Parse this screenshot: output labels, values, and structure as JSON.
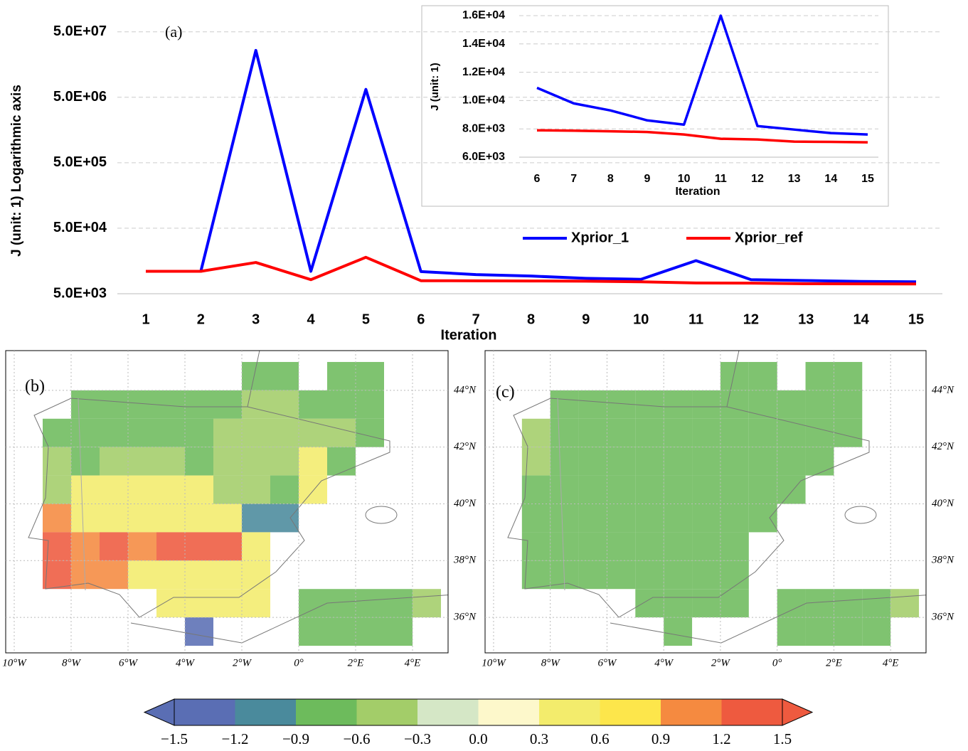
{
  "chart_data": [
    {
      "type": "line",
      "log_y": true,
      "annotation": "(a)",
      "y_label": "J (unit: 1) Logarithmic axis",
      "x_label": "Iteration",
      "categories": [
        "1",
        "2",
        "3",
        "4",
        "5",
        "6",
        "7",
        "8",
        "9",
        "10",
        "11",
        "12",
        "13",
        "14",
        "15"
      ],
      "series": [
        {
          "name": "Xprior_1",
          "color": "#0000ff",
          "values": [
            11000,
            11000,
            26000000,
            11000,
            6600000,
            10900,
            9800,
            9300,
            8600,
            8300,
            16000,
            8200,
            7950,
            7700,
            7600
          ]
        },
        {
          "name": "Xprior_ref",
          "color": "#ff0000",
          "values": [
            11000,
            11000,
            15000,
            8200,
            18000,
            7900,
            7870,
            7830,
            7780,
            7600,
            7300,
            7250,
            7100,
            7080,
            7050
          ]
        }
      ],
      "ylim": [
        5000,
        100000000
      ],
      "yticks": [
        {
          "value": 5000,
          "label": "5.0E+03"
        },
        {
          "value": 50000,
          "label": "5.0E+04"
        },
        {
          "value": 500000,
          "label": "5.0E+05"
        },
        {
          "value": 5000000,
          "label": "5.0E+06"
        },
        {
          "value": 50000000,
          "label": "5.0E+07"
        }
      ],
      "grid": true,
      "legend": "right"
    },
    {
      "type": "line",
      "log_y": false,
      "y_label": "J (unit: 1)",
      "x_label": "Iteration",
      "categories": [
        "6",
        "7",
        "8",
        "9",
        "10",
        "11",
        "12",
        "13",
        "14",
        "15"
      ],
      "series": [
        {
          "color": "#0000ff",
          "values": [
            10900,
            9800,
            9300,
            8600,
            8300,
            16000,
            8200,
            7950,
            7700,
            7600
          ]
        },
        {
          "color": "#ff0000",
          "values": [
            7900,
            7870,
            7830,
            7780,
            7600,
            7300,
            7250,
            7100,
            7080,
            7050
          ]
        }
      ],
      "ylim": [
        6000,
        16000
      ],
      "yticks": [
        {
          "value": 6000,
          "label": "6.0E+03"
        },
        {
          "value": 8000,
          "label": "8.0E+03"
        },
        {
          "value": 10000,
          "label": "1.0E+04"
        },
        {
          "value": 12000,
          "label": "1.2E+04"
        },
        {
          "value": 14000,
          "label": "1.4E+04"
        },
        {
          "value": 16000,
          "label": "1.6E+04"
        }
      ],
      "grid": true
    },
    {
      "type": "map",
      "annotation": "(b)",
      "xlim": [
        -10.3,
        5.25
      ],
      "ylim": [
        34.75,
        45.4
      ],
      "xticks": [
        {
          "value": -10,
          "label": "10°W"
        },
        {
          "value": -8,
          "label": "8°W"
        },
        {
          "value": -6,
          "label": "6°W"
        },
        {
          "value": -4,
          "label": "4°W"
        },
        {
          "value": -2,
          "label": "2°W"
        },
        {
          "value": 0,
          "label": "0°"
        },
        {
          "value": 2,
          "label": "2°E"
        },
        {
          "value": 4,
          "label": "4°E"
        }
      ],
      "yticks": [
        {
          "value": 36,
          "label": "36°N"
        },
        {
          "value": 38,
          "label": "38°N"
        },
        {
          "value": 40,
          "label": "40°N"
        },
        {
          "value": 42,
          "label": "42°N"
        },
        {
          "value": 44,
          "label": "44°N"
        }
      ],
      "xbins": [
        -10,
        -9,
        -8,
        -7,
        -6,
        -5,
        -4,
        -3,
        -2,
        -1,
        0,
        1,
        2,
        3,
        4,
        5
      ],
      "ybins": [
        45,
        44,
        43,
        42,
        41,
        40,
        39,
        38,
        37,
        36,
        35
      ],
      "z": [
        [
          null,
          null,
          null,
          null,
          null,
          null,
          null,
          null,
          -0.7,
          -0.7,
          null,
          -0.7,
          -0.7,
          null,
          null
        ],
        [
          null,
          null,
          -0.7,
          -0.7,
          -0.7,
          -0.7,
          -0.7,
          -0.7,
          -0.5,
          -0.5,
          -0.7,
          -0.7,
          -0.8,
          null,
          null
        ],
        [
          null,
          -0.7,
          -0.7,
          -0.7,
          -0.7,
          -0.7,
          -0.7,
          -0.4,
          -0.4,
          -0.4,
          -0.5,
          -0.5,
          -0.7,
          null,
          null
        ],
        [
          null,
          -0.5,
          -0.7,
          -0.5,
          -0.5,
          -0.5,
          -0.7,
          -0.5,
          -0.5,
          -0.5,
          0.4,
          -0.7,
          null,
          null,
          null
        ],
        [
          null,
          -0.5,
          0.4,
          0.4,
          0.4,
          0.4,
          0.4,
          -0.5,
          -0.5,
          -0.7,
          0.4,
          null,
          null,
          null,
          null
        ],
        [
          null,
          1.0,
          0.5,
          0.5,
          0.5,
          0.5,
          0.5,
          0.5,
          -1.0,
          -1.0,
          null,
          null,
          null,
          null,
          null
        ],
        [
          null,
          1.3,
          1.1,
          1.3,
          1.1,
          1.3,
          1.3,
          1.3,
          0.5,
          null,
          null,
          null,
          null,
          null,
          null
        ],
        [
          null,
          1.3,
          1.1,
          1.0,
          0.5,
          0.5,
          0.5,
          0.5,
          0.5,
          null,
          null,
          null,
          null,
          null,
          null
        ],
        [
          null,
          null,
          null,
          null,
          null,
          0.5,
          0.5,
          0.5,
          0.5,
          null,
          -0.8,
          -0.8,
          -0.8,
          -0.8,
          -0.5
        ],
        [
          null,
          null,
          null,
          null,
          null,
          null,
          -1.4,
          null,
          null,
          null,
          -0.8,
          -0.8,
          -0.8,
          -0.8,
          null
        ]
      ]
    },
    {
      "type": "map",
      "annotation": "(c)",
      "xlim": [
        -10.3,
        5.25
      ],
      "ylim": [
        34.75,
        45.4
      ],
      "xticks": [
        {
          "value": -10,
          "label": "10°W"
        },
        {
          "value": -8,
          "label": "8°W"
        },
        {
          "value": -6,
          "label": "6°W"
        },
        {
          "value": -4,
          "label": "4°W"
        },
        {
          "value": -2,
          "label": "2°W"
        },
        {
          "value": 0,
          "label": "0°"
        },
        {
          "value": 2,
          "label": "2°E"
        },
        {
          "value": 4,
          "label": "4°E"
        }
      ],
      "yticks": [
        {
          "value": 36,
          "label": "36°N"
        },
        {
          "value": 38,
          "label": "38°N"
        },
        {
          "value": 40,
          "label": "40°N"
        },
        {
          "value": 42,
          "label": "42°N"
        },
        {
          "value": 44,
          "label": "44°N"
        }
      ],
      "xbins": [
        -10,
        -9,
        -8,
        -7,
        -6,
        -5,
        -4,
        -3,
        -2,
        -1,
        0,
        1,
        2,
        3,
        4,
        5
      ],
      "ybins": [
        45,
        44,
        43,
        42,
        41,
        40,
        39,
        38,
        37,
        36,
        35
      ],
      "z": [
        [
          null,
          null,
          null,
          null,
          null,
          null,
          null,
          null,
          -0.7,
          -0.7,
          null,
          -0.7,
          -0.7,
          null,
          null
        ],
        [
          null,
          null,
          -0.7,
          -0.7,
          -0.7,
          -0.7,
          -0.7,
          -0.7,
          -0.7,
          -0.7,
          -0.7,
          -0.7,
          -0.8,
          null,
          null
        ],
        [
          null,
          -0.5,
          -0.7,
          -0.7,
          -0.7,
          -0.7,
          -0.7,
          -0.7,
          -0.7,
          -0.7,
          -0.7,
          -0.7,
          -0.7,
          null,
          null
        ],
        [
          null,
          -0.5,
          -0.7,
          -0.7,
          -0.7,
          -0.7,
          -0.7,
          -0.7,
          -0.7,
          -0.7,
          -0.7,
          -0.7,
          null,
          null,
          null
        ],
        [
          null,
          -0.7,
          -0.7,
          -0.7,
          -0.7,
          -0.7,
          -0.7,
          -0.7,
          -0.7,
          -0.7,
          -0.7,
          null,
          null,
          null,
          null
        ],
        [
          null,
          -0.7,
          -0.7,
          -0.7,
          -0.7,
          -0.7,
          -0.7,
          -0.7,
          -0.7,
          -0.7,
          null,
          null,
          null,
          null,
          null
        ],
        [
          null,
          -0.7,
          -0.7,
          -0.7,
          -0.7,
          -0.7,
          -0.7,
          -0.7,
          -0.7,
          null,
          null,
          null,
          null,
          null,
          null
        ],
        [
          null,
          -0.7,
          -0.7,
          -0.7,
          -0.7,
          -0.7,
          -0.7,
          -0.7,
          -0.7,
          null,
          null,
          null,
          null,
          null,
          null
        ],
        [
          null,
          null,
          null,
          null,
          null,
          -0.7,
          -0.7,
          -0.7,
          -0.7,
          null,
          -0.7,
          -0.7,
          -0.7,
          -0.7,
          -0.5
        ],
        [
          null,
          null,
          null,
          null,
          null,
          null,
          -0.7,
          null,
          null,
          null,
          -0.7,
          -0.7,
          -0.7,
          -0.7,
          null
        ]
      ]
    },
    {
      "type": "colorbar",
      "ticks": [
        {
          "value": -1.5,
          "label": "−1.5"
        },
        {
          "value": -1.2,
          "label": "−1.2"
        },
        {
          "value": -0.9,
          "label": "−0.9"
        },
        {
          "value": -0.6,
          "label": "−0.6"
        },
        {
          "value": -0.3,
          "label": "−0.3"
        },
        {
          "value": 0,
          "label": "0.0"
        },
        {
          "value": 0.3,
          "label": "0.3"
        },
        {
          "value": 0.6,
          "label": "0.6"
        },
        {
          "value": 0.9,
          "label": "0.9"
        },
        {
          "value": 1.2,
          "label": "1.2"
        },
        {
          "value": 1.5,
          "label": "1.5"
        }
      ],
      "colors": [
        "#5a6eb4",
        "#4a8a9c",
        "#6dbb5c",
        "#a3cd69",
        "#d5e7c6",
        "#fdf8cb",
        "#f3ec6c",
        "#fde64b",
        "#f58a40",
        "#ee5a3f"
      ]
    }
  ]
}
